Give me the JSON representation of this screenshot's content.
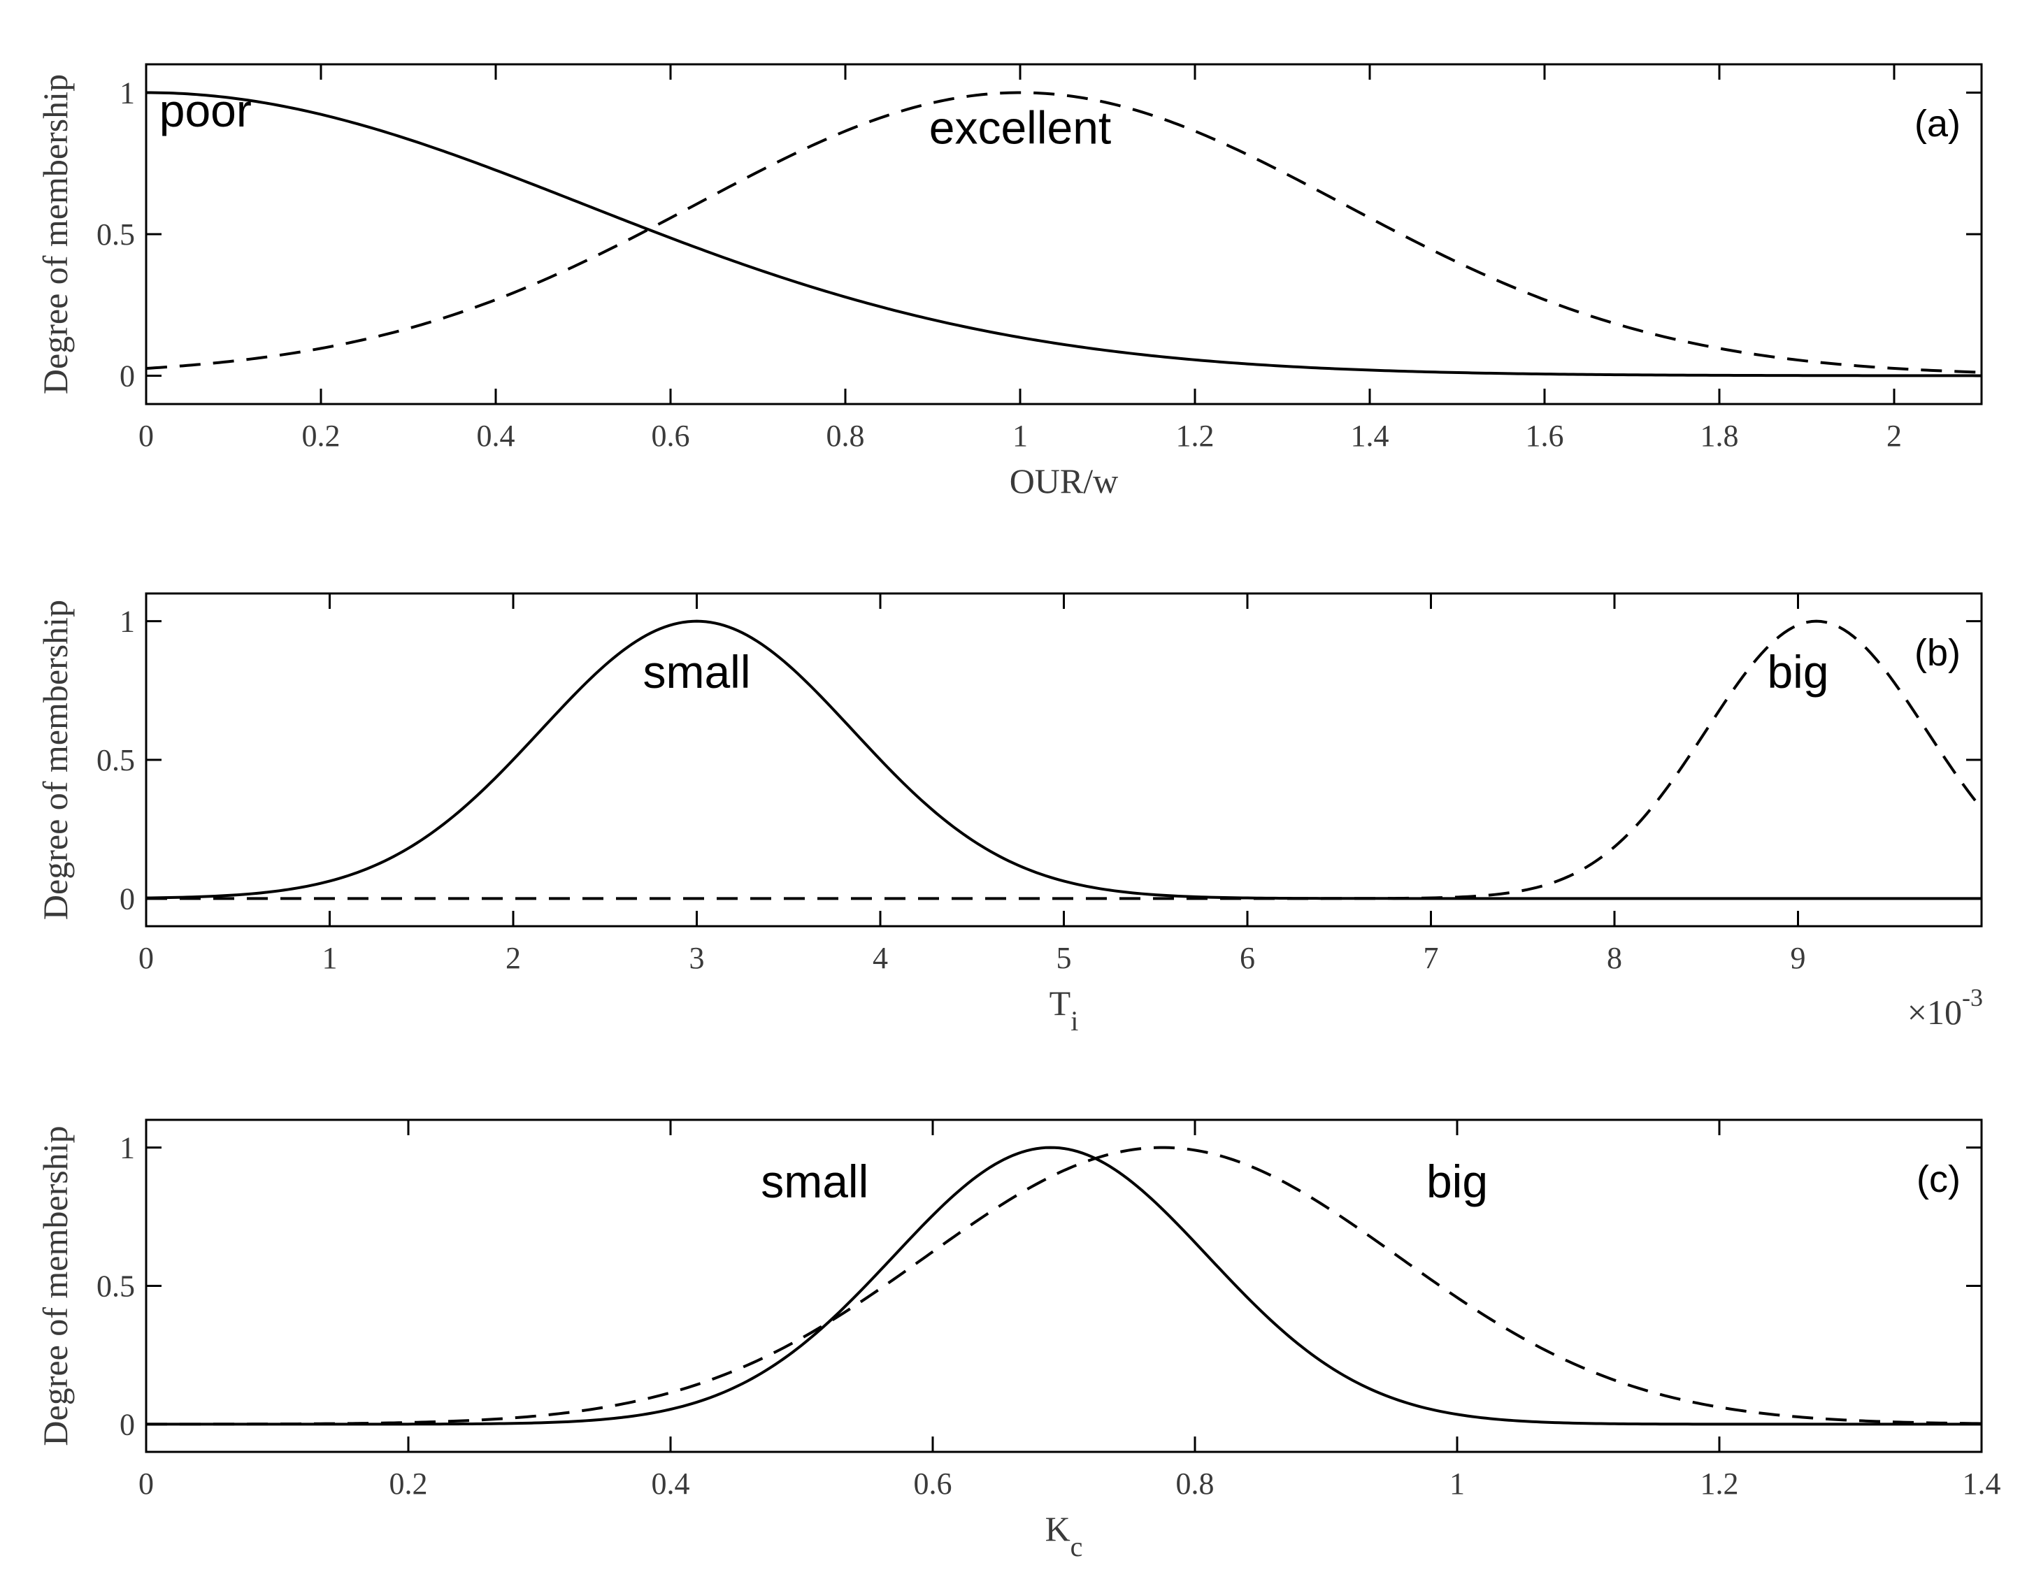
{
  "chart_data": [
    {
      "type": "line",
      "panel_label": "(a)",
      "xlabel": "OUR/w",
      "xlabel_sub": "",
      "ylabel": "Degree of membership",
      "xlim": [
        0,
        2.1
      ],
      "ylim": [
        -0.1,
        1.1
      ],
      "xticks": [
        0,
        0.2,
        0.4,
        0.6,
        0.8,
        1,
        1.2,
        1.4,
        1.6,
        1.8,
        2
      ],
      "xtick_labels": [
        "0",
        "0.2",
        "0.4",
        "0.6",
        "0.8",
        "1",
        "1.2",
        "1.4",
        "1.6",
        "1.8",
        "2"
      ],
      "yticks": [
        0,
        0.5,
        1
      ],
      "ytick_labels": [
        "0",
        "0.5",
        "1"
      ],
      "x_multiplier": "",
      "x_multiplier_exp": "",
      "series": [
        {
          "name": "poor",
          "style": "solid",
          "mf": "gauss",
          "mean": 0.0,
          "sigma": 0.5,
          "label_at": [
            0.015,
            0.88
          ],
          "label_anchor": "start"
        },
        {
          "name": "excellent",
          "style": "dashed",
          "mf": "gauss",
          "mean": 1.0,
          "sigma": 0.37,
          "label_at": [
            1.0,
            0.82
          ],
          "label_anchor": "middle"
        }
      ]
    },
    {
      "type": "line",
      "panel_label": "(b)",
      "xlabel": "T",
      "xlabel_sub": "i",
      "ylabel": "Degree of membership",
      "xlim": [
        0,
        10
      ],
      "ylim": [
        -0.1,
        1.1
      ],
      "xticks": [
        0,
        1,
        2,
        3,
        4,
        5,
        6,
        7,
        8,
        9
      ],
      "xtick_labels": [
        "0",
        "1",
        "2",
        "3",
        "4",
        "5",
        "6",
        "7",
        "8",
        "9"
      ],
      "yticks": [
        0,
        0.5,
        1
      ],
      "ytick_labels": [
        "0",
        "0.5",
        "1"
      ],
      "x_multiplier": "×10",
      "x_multiplier_exp": "-3",
      "series": [
        {
          "name": "small",
          "style": "solid",
          "mf": "gauss",
          "mean": 3.0,
          "sigma": 0.85,
          "label_at": [
            3.0,
            0.76
          ],
          "label_anchor": "middle"
        },
        {
          "name": "big",
          "style": "dashed",
          "mf": "gauss",
          "mean": 9.1,
          "sigma": 0.6,
          "label_at": [
            9.0,
            0.76
          ],
          "label_anchor": "middle"
        }
      ]
    },
    {
      "type": "line",
      "panel_label": "(c)",
      "xlabel": "K",
      "xlabel_sub": "c",
      "ylabel": "Degree of membership",
      "xlim": [
        0,
        1.4
      ],
      "ylim": [
        -0.1,
        1.1
      ],
      "xticks": [
        0,
        0.2,
        0.4,
        0.6,
        0.8,
        1,
        1.2,
        1.4
      ],
      "xtick_labels": [
        "0",
        "0.2",
        "0.4",
        "0.6",
        "0.8",
        "1",
        "1.2",
        "1.4"
      ],
      "yticks": [
        0,
        0.5,
        1
      ],
      "ytick_labels": [
        "0",
        "0.5",
        "1"
      ],
      "x_multiplier": "",
      "x_multiplier_exp": "",
      "series": [
        {
          "name": "small",
          "style": "solid",
          "mf": "gauss",
          "mean": 0.69,
          "sigma": 0.12,
          "label_at": [
            0.51,
            0.82
          ],
          "label_anchor": "middle"
        },
        {
          "name": "big",
          "style": "dashed",
          "mf": "gauss",
          "mean": 0.775,
          "sigma": 0.18,
          "label_at": [
            1.0,
            0.82
          ],
          "label_anchor": "middle"
        }
      ]
    }
  ]
}
